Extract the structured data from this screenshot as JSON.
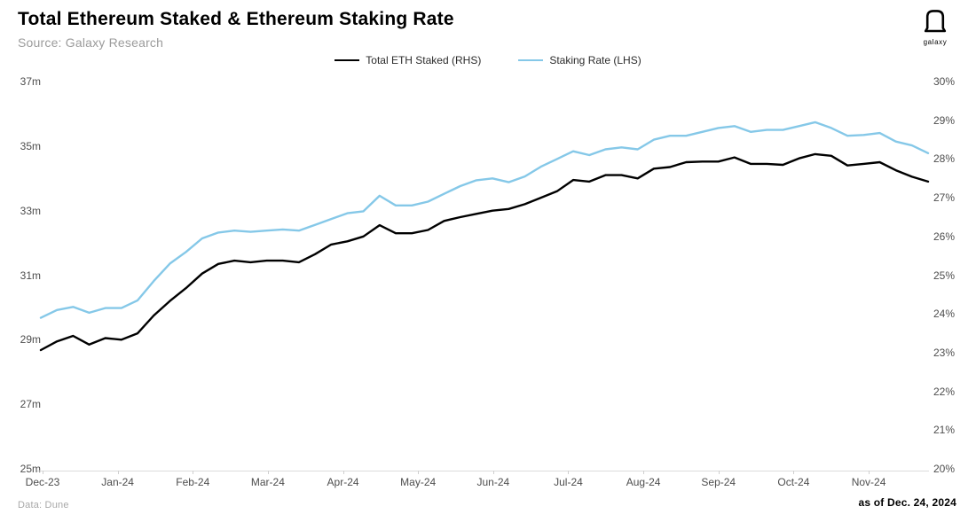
{
  "header": {
    "title": "Total Ethereum Staked & Ethereum Staking Rate",
    "subtitle": "Source: Galaxy Research",
    "logo_label": "galaxy"
  },
  "legend": [
    {
      "label": "Total ETH Staked (RHS)",
      "color": "#000000"
    },
    {
      "label": "Staking Rate (LHS)",
      "color": "#85c8e8"
    }
  ],
  "footer": {
    "data_source": "Data: Dune",
    "as_of": "as of Dec. 24, 2024"
  },
  "chart_data": {
    "type": "line",
    "title": "Total Ethereum Staked & Ethereum Staking Rate",
    "x_ticks": [
      "Dec-23",
      "Jan-24",
      "Feb-24",
      "Mar-24",
      "Apr-24",
      "May-24",
      "Jun-24",
      "Jul-24",
      "Aug-24",
      "Sep-24",
      "Oct-24",
      "Nov-24"
    ],
    "x_range_note": "Daily data from Dec 2023 through Dec 24, 2024; series sampled ~weekly below",
    "grid": "off",
    "legend_position": "top-center",
    "millions_axis": {
      "side_shown": "left",
      "ticks": [
        "37m",
        "35m",
        "33m",
        "31m",
        "29m",
        "27m",
        "25m"
      ],
      "min": 25,
      "max": 37,
      "unit": "m ETH"
    },
    "percent_axis": {
      "side_shown": "right",
      "ticks": [
        "30%",
        "29%",
        "28%",
        "27%",
        "26%",
        "25%",
        "24%",
        "23%",
        "22%",
        "21%",
        "20%"
      ],
      "min": 20,
      "max": 30,
      "unit": "%"
    },
    "series": [
      {
        "name": "Total ETH Staked (RHS)",
        "color": "#000000",
        "axis": "millions_axis",
        "values": [
          28.68,
          28.95,
          29.12,
          28.85,
          29.05,
          29.0,
          29.2,
          29.75,
          30.2,
          30.6,
          31.05,
          31.35,
          31.45,
          31.4,
          31.45,
          31.45,
          31.4,
          31.65,
          31.95,
          32.05,
          32.2,
          32.55,
          32.3,
          32.3,
          32.4,
          32.68,
          32.8,
          32.9,
          33.0,
          33.05,
          33.2,
          33.4,
          33.6,
          33.95,
          33.9,
          34.1,
          34.1,
          34.0,
          34.3,
          34.35,
          34.5,
          34.52,
          34.52,
          34.65,
          34.45,
          34.45,
          34.42,
          34.62,
          34.75,
          34.7,
          34.4,
          34.45,
          34.5,
          34.25,
          34.05,
          33.9
        ]
      },
      {
        "name": "Staking Rate (LHS)",
        "color": "#85c8e8",
        "axis": "percent_axis",
        "values": [
          23.9,
          24.1,
          24.18,
          24.03,
          24.15,
          24.15,
          24.35,
          24.85,
          25.3,
          25.6,
          25.95,
          26.1,
          26.15,
          26.12,
          26.15,
          26.18,
          26.15,
          26.3,
          26.45,
          26.6,
          26.65,
          27.05,
          26.8,
          26.8,
          26.9,
          27.1,
          27.3,
          27.45,
          27.5,
          27.4,
          27.55,
          27.8,
          28.0,
          28.2,
          28.1,
          28.25,
          28.3,
          28.25,
          28.5,
          28.6,
          28.6,
          28.7,
          28.8,
          28.85,
          28.7,
          28.75,
          28.75,
          28.85,
          28.95,
          28.8,
          28.6,
          28.62,
          28.67,
          28.45,
          28.35,
          28.15
        ]
      }
    ]
  }
}
